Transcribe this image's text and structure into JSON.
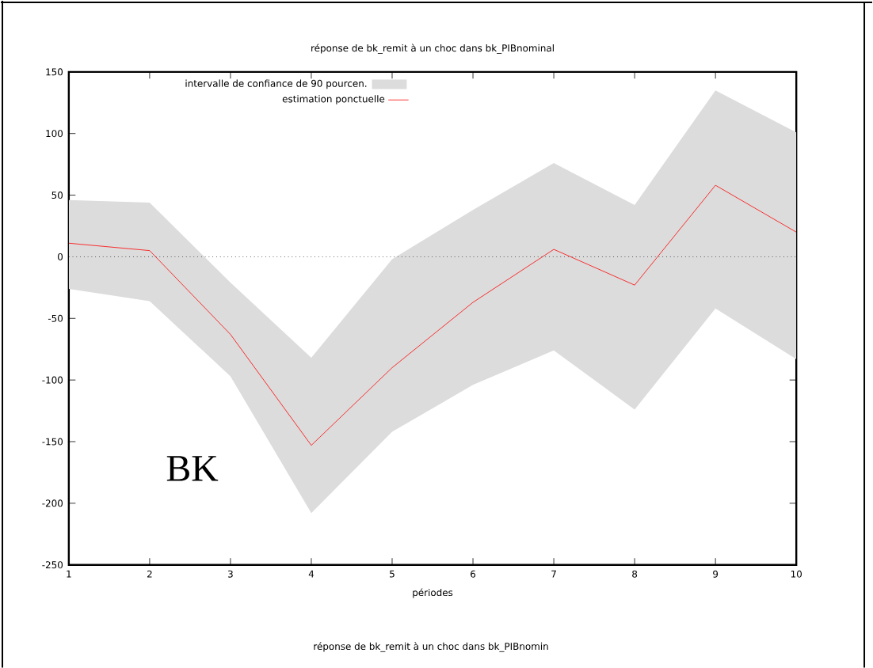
{
  "chart_data": {
    "type": "line",
    "title": "réponse de bk_remit à un choc dans bk_PIBnominal",
    "xlabel": "périodes",
    "x": [
      1,
      2,
      3,
      4,
      5,
      6,
      7,
      8,
      9,
      10
    ],
    "legend_title": "intervalle de confiance de 90 pourcen.",
    "series": [
      {
        "name": "estimation ponctuelle",
        "color": "#ff0000",
        "values": [
          11,
          5,
          -63,
          -153,
          -90,
          -37,
          6,
          -23,
          58,
          20
        ],
        "lower": [
          -26,
          -36,
          -97,
          -208,
          -142,
          -104,
          -76,
          -124,
          -42,
          -83
        ],
        "upper": [
          46,
          44,
          -21,
          -82,
          -2,
          38,
          76,
          42,
          135,
          101
        ]
      }
    ],
    "xlim": [
      1,
      10
    ],
    "xticks": [
      1,
      2,
      3,
      4,
      5,
      6,
      7,
      8,
      9,
      10
    ],
    "ylim": [
      -250,
      150
    ],
    "yticks": [
      -250,
      -200,
      -150,
      -100,
      -50,
      0,
      50,
      100,
      150
    ],
    "ref_lines": [
      {
        "axis": "y",
        "value": 0,
        "color": "#000000",
        "line_style": "dotted"
      }
    ],
    "legend": "top left",
    "grid": false,
    "marker": "none",
    "annotations": [
      "BK",
      "réponse de bk_remit à un choc dans bk_PIBnomin"
    ]
  }
}
